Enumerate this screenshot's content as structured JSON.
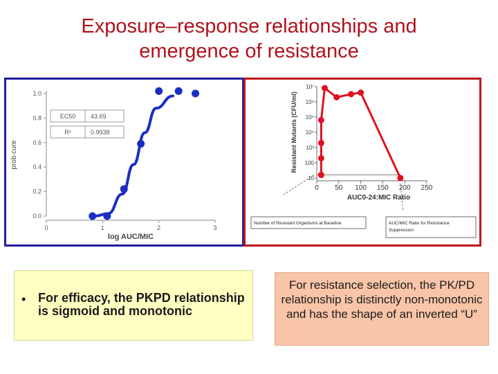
{
  "slide": {
    "title_line1": "Exposure–response relationships and",
    "title_line2": "emergence of resistance",
    "left_bullet": "•",
    "left_text": "For efficacy, the PKPD relationship  is sigmoid and monotonic",
    "right_text": "For resistance selection, the PK/PD relationship is distinctly non-monotonic and has the shape of an inverted “U”"
  },
  "colors": {
    "title": "#b0121b",
    "left_border": "#1c1f9e",
    "right_border": "#c0121b",
    "blue_series": "#1b2ec4",
    "red_series": "#e01020",
    "left_box_bg": "#ffffc2",
    "right_box_bg": "#f9c5a8"
  },
  "chart_data": [
    {
      "type": "scatter",
      "xlabel": "log AUC/MIC",
      "ylabel": "prob cure",
      "xlim": [
        0,
        3
      ],
      "ylim": [
        0,
        1
      ],
      "xticks": [
        "0",
        "1",
        "2",
        "3"
      ],
      "yticks": [
        "0.0",
        "0.2",
        "0.4",
        "0.6",
        "0.8",
        "1.0"
      ],
      "stats": [
        {
          "label": "EC50",
          "value": "43.69"
        },
        {
          "label": "R²",
          "value": "0.9938"
        }
      ],
      "points": [
        {
          "x": 0.82,
          "y": 0.0
        },
        {
          "x": 1.08,
          "y": 0.0
        },
        {
          "x": 1.38,
          "y": 0.22
        },
        {
          "x": 1.68,
          "y": 0.59
        },
        {
          "x": 2.0,
          "y": 1.02
        },
        {
          "x": 2.35,
          "y": 1.02
        },
        {
          "x": 2.65,
          "y": 1.0
        }
      ],
      "curve": [
        {
          "x": 0.85,
          "y": 0.0
        },
        {
          "x": 1.1,
          "y": 0.02
        },
        {
          "x": 1.35,
          "y": 0.18
        },
        {
          "x": 1.55,
          "y": 0.42
        },
        {
          "x": 1.75,
          "y": 0.68
        },
        {
          "x": 1.95,
          "y": 0.88
        },
        {
          "x": 2.25,
          "y": 0.98
        }
      ]
    },
    {
      "type": "line",
      "xlabel": "AUC0-24:MIC Ratio",
      "ylabel": "Resistant Mutants (CFU/ml)",
      "xlim": [
        0,
        250
      ],
      "ylim": [
        1,
        7
      ],
      "xticks": [
        "0",
        "50",
        "100",
        "150",
        "200",
        "250"
      ],
      "yticks": [
        "10",
        "100",
        "10³",
        "10⁴",
        "10⁵",
        "10⁶",
        "10⁷"
      ],
      "y_scale": "log",
      "x": [
        10,
        10,
        10,
        10,
        18,
        45,
        78,
        100,
        190
      ],
      "y": [
        1.2,
        2.3,
        3.3,
        4.8,
        6.9,
        6.3,
        6.5,
        6.6,
        1.0
      ],
      "annotations": [
        "Number of Resistant Organisms at Baseline",
        "AUC/MIC Ratio for Resistance Suppression"
      ]
    }
  ]
}
